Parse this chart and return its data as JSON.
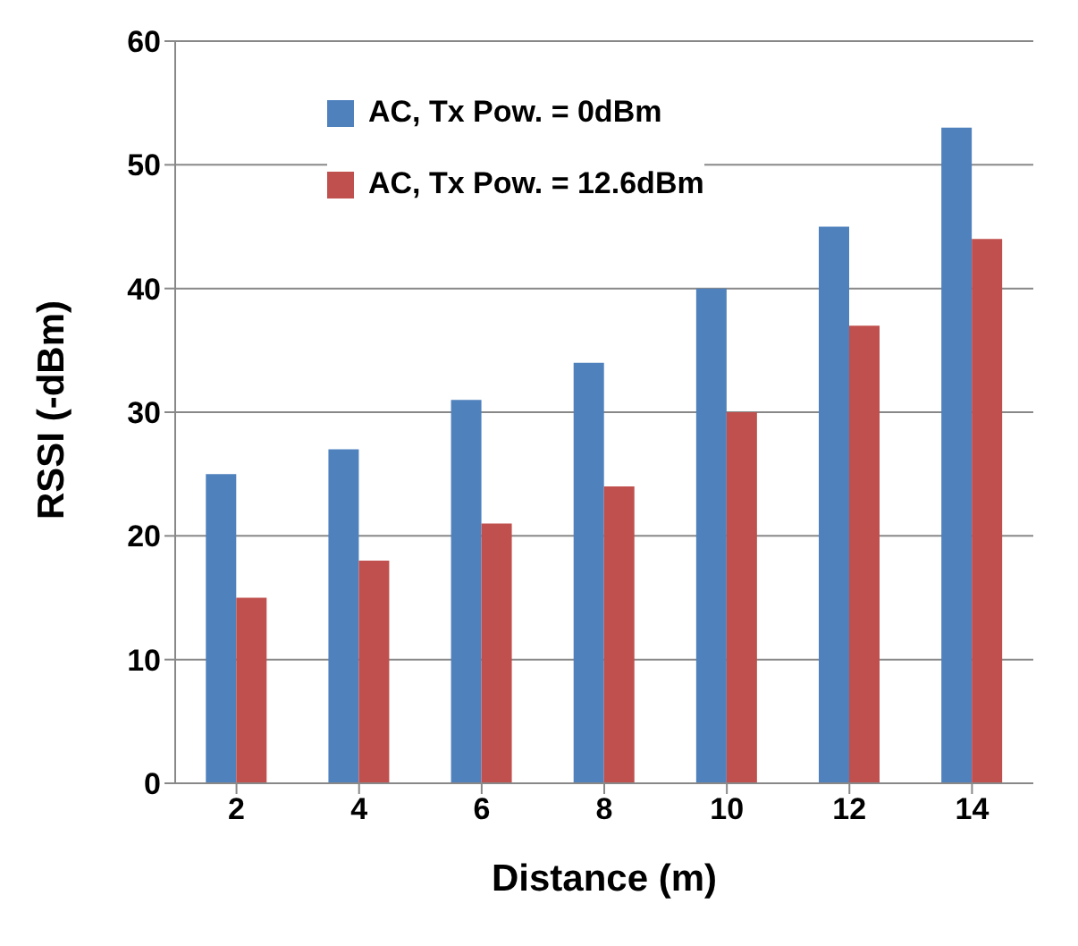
{
  "chart_data": {
    "type": "bar",
    "xlabel": "Distance (m)",
    "ylabel": "RSSI (-dBm)",
    "categories": [
      "2",
      "4",
      "6",
      "8",
      "10",
      "12",
      "14"
    ],
    "series": [
      {
        "name": "AC, Tx Pow. = 0dBm",
        "color": "#4f81bd",
        "values": [
          25,
          27,
          31,
          34,
          40,
          45,
          53
        ]
      },
      {
        "name": "AC, Tx Pow. = 12.6dBm",
        "color": "#c0504d",
        "values": [
          15,
          18,
          21,
          24,
          30,
          37,
          44
        ]
      }
    ],
    "ylim": [
      0,
      60
    ],
    "yticks": [
      0,
      10,
      20,
      30,
      40,
      50,
      60
    ],
    "grid": "y",
    "legend": "top left"
  }
}
